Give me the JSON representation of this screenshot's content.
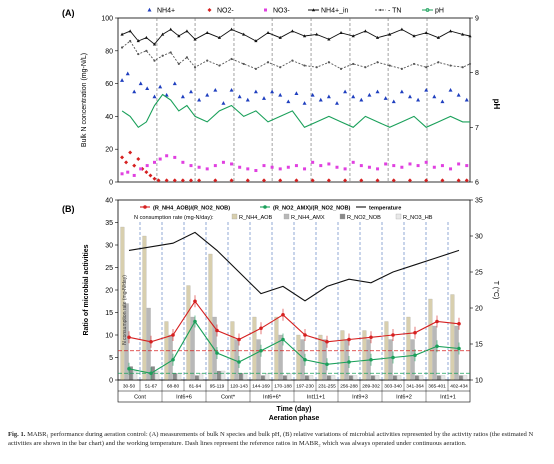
{
  "caption": {
    "label": "Fig. 1.",
    "text": "MABR₁ performance during aeration control: (A) measurements of bulk N species and bulk pH, (B) relative variations of microbial activities represented by the activity ratios (the estimated N activities are shown in the bar chart) and the working temperature. Dash lines represent the reference ratios in MABR₂ which was always operated under continuous aeration."
  },
  "chart_data": [
    {
      "panel": "(A)",
      "type": "scatter",
      "ylabel": "Bulk N concentration (mg-N/L)",
      "y2label": "pH",
      "ylim": [
        0,
        100
      ],
      "y2lim": [
        6,
        9
      ],
      "yticks": [
        0,
        20,
        40,
        60,
        80,
        100
      ],
      "y2ticks": [
        6,
        7,
        8,
        9
      ],
      "xlim": [
        0,
        434
      ],
      "phase_boundaries": [
        48,
        95,
        143,
        190,
        238,
        286,
        333,
        381
      ],
      "series": [
        {
          "name": "NH4+",
          "color": "#1f3fbf",
          "marker": "triangle",
          "axis": "left",
          "x": [
            5,
            12,
            20,
            28,
            36,
            45,
            52,
            60,
            70,
            80,
            90,
            100,
            110,
            120,
            130,
            140,
            150,
            160,
            170,
            180,
            190,
            200,
            210,
            220,
            230,
            240,
            250,
            260,
            270,
            280,
            290,
            300,
            310,
            320,
            330,
            340,
            350,
            360,
            370,
            380,
            390,
            400,
            410,
            420,
            430
          ],
          "values": [
            62,
            66,
            55,
            60,
            57,
            52,
            58,
            53,
            60,
            52,
            55,
            50,
            53,
            56,
            48,
            56,
            52,
            50,
            55,
            51,
            55,
            53,
            49,
            54,
            48,
            53,
            50,
            52,
            48,
            55,
            52,
            50,
            53,
            55,
            51,
            49,
            55,
            52,
            50,
            56,
            52,
            49,
            56,
            53,
            50
          ]
        },
        {
          "name": "NO2-",
          "color": "#d62020",
          "marker": "diamond",
          "axis": "left",
          "x": [
            5,
            10,
            15,
            20,
            25,
            30,
            35,
            40,
            45,
            50,
            60,
            70,
            80,
            90,
            100,
            120,
            140,
            160,
            180,
            200,
            220,
            240,
            260,
            280,
            300,
            320,
            340,
            360,
            380,
            400,
            420,
            430
          ],
          "values": [
            15,
            12,
            18,
            10,
            14,
            8,
            6,
            4,
            2,
            1,
            1,
            1,
            1,
            1,
            1,
            1,
            1,
            1,
            1,
            1,
            1,
            1,
            1,
            1,
            1,
            1,
            1,
            1,
            1,
            1,
            1,
            1
          ]
        },
        {
          "name": "NO3-",
          "color": "#e040e0",
          "marker": "square",
          "axis": "left",
          "x": [
            5,
            12,
            20,
            28,
            36,
            45,
            52,
            60,
            70,
            80,
            90,
            100,
            110,
            120,
            130,
            140,
            150,
            160,
            170,
            180,
            190,
            200,
            210,
            220,
            230,
            240,
            250,
            260,
            270,
            280,
            290,
            300,
            310,
            320,
            330,
            340,
            350,
            360,
            370,
            380,
            390,
            400,
            410,
            420,
            430
          ],
          "values": [
            5,
            6,
            4,
            8,
            10,
            12,
            14,
            16,
            15,
            12,
            10,
            9,
            8,
            10,
            12,
            11,
            9,
            8,
            7,
            10,
            9,
            8,
            9,
            10,
            8,
            12,
            10,
            11,
            9,
            8,
            12,
            10,
            9,
            8,
            11,
            10,
            9,
            11,
            10,
            12,
            9,
            10,
            8,
            11,
            10
          ]
        },
        {
          "name": "NH4+_in",
          "color": "#111111",
          "marker": "triangle-line",
          "axis": "left",
          "x": [
            5,
            15,
            25,
            35,
            45,
            55,
            65,
            75,
            85,
            95,
            110,
            125,
            140,
            155,
            170,
            185,
            200,
            215,
            230,
            245,
            260,
            275,
            290,
            305,
            320,
            335,
            350,
            365,
            380,
            395,
            410,
            425,
            434
          ],
          "values": [
            90,
            92,
            86,
            88,
            84,
            90,
            93,
            89,
            92,
            87,
            91,
            88,
            93,
            90,
            86,
            91,
            88,
            92,
            89,
            90,
            87,
            91,
            89,
            92,
            88,
            90,
            93,
            89,
            91,
            88,
            92,
            90,
            89
          ]
        },
        {
          "name": "TN",
          "color": "#555555",
          "marker": "dot-dash",
          "axis": "left",
          "x": [
            5,
            15,
            25,
            35,
            45,
            55,
            65,
            75,
            85,
            95,
            110,
            125,
            140,
            155,
            170,
            185,
            200,
            215,
            230,
            245,
            260,
            275,
            290,
            305,
            320,
            335,
            350,
            365,
            380,
            395,
            410,
            425,
            434
          ],
          "values": [
            82,
            86,
            78,
            80,
            74,
            77,
            79,
            72,
            76,
            70,
            74,
            71,
            75,
            72,
            69,
            73,
            70,
            74,
            71,
            70,
            73,
            69,
            72,
            70,
            73,
            71,
            69,
            72,
            70,
            73,
            71,
            70,
            72
          ]
        },
        {
          "name": "pH",
          "color": "#1aa05a",
          "marker": "line",
          "axis": "right",
          "x": [
            5,
            15,
            25,
            35,
            45,
            55,
            65,
            75,
            85,
            95,
            110,
            125,
            140,
            155,
            170,
            185,
            200,
            215,
            230,
            245,
            260,
            275,
            290,
            305,
            320,
            335,
            350,
            365,
            380,
            395,
            410,
            425,
            434
          ],
          "values": [
            7.3,
            7.2,
            7.0,
            7.1,
            7.4,
            7.6,
            7.5,
            7.3,
            7.4,
            7.2,
            7.1,
            7.3,
            7.4,
            7.2,
            7.3,
            7.1,
            7.2,
            7.3,
            7.0,
            7.1,
            7.2,
            7.1,
            7.0,
            7.2,
            7.1,
            7.0,
            7.1,
            7.2,
            7.0,
            7.1,
            7.2,
            7.1,
            7.1
          ]
        }
      ],
      "legend_placement": "top"
    },
    {
      "panel": "(B)",
      "type": "line",
      "ylabel": "Ratio of microbial activities",
      "y2label": "T (°C)",
      "xlabel": "Time (day)",
      "xlabel2": "Aeration phase",
      "ylim": [
        0,
        40
      ],
      "y2lim": [
        10,
        35
      ],
      "yticks": [
        0,
        5,
        10,
        15,
        20,
        25,
        30,
        35,
        40
      ],
      "y2ticks": [
        10,
        15,
        20,
        25,
        30,
        35
      ],
      "categories": [
        "30-50",
        "51-67",
        "68-80",
        "81-94",
        "95-119",
        "120-143",
        "144-169",
        "170-188",
        "197-230",
        "231-255",
        "256-288",
        "289-302",
        "303-340",
        "341-364",
        "365-401",
        "402-434"
      ],
      "phases": [
        {
          "label": "Cont",
          "span": [
            0,
            2
          ]
        },
        {
          "label": "Int6+6",
          "span": [
            2,
            4
          ]
        },
        {
          "label": "Cont*",
          "span": [
            4,
            6
          ]
        },
        {
          "label": "Int6+6*",
          "span": [
            6,
            8
          ]
        },
        {
          "label": "Int11+1",
          "span": [
            8,
            10
          ]
        },
        {
          "label": "Int9+3",
          "span": [
            10,
            12
          ]
        },
        {
          "label": "Int6+2",
          "span": [
            12,
            14
          ]
        },
        {
          "label": "Int1+1",
          "span": [
            14,
            16
          ]
        }
      ],
      "series": [
        {
          "name": "(R_NH4_AOB)/(R_NO2_NOB)",
          "color": "#d62020",
          "axis": "left",
          "values": [
            9.5,
            8.5,
            10,
            17.5,
            11,
            9,
            11.5,
            14.5,
            10,
            8.5,
            9,
            9.5,
            10,
            10.5,
            13,
            12.5
          ]
        },
        {
          "name": "(R_NO2_AMX)/(R_NO2_NOB)",
          "color": "#1aa05a",
          "axis": "left",
          "values": [
            2.5,
            1.5,
            4.5,
            13,
            6,
            4,
            6.5,
            9,
            4.5,
            3.5,
            4,
            4.5,
            5,
            5.5,
            7.5,
            7
          ]
        },
        {
          "name": "temperature",
          "color": "#111111",
          "axis": "right",
          "values": [
            28,
            28.5,
            29,
            30.5,
            28,
            25,
            22,
            23,
            21,
            23,
            24,
            23.5,
            25,
            26,
            27,
            28
          ]
        }
      ],
      "reference_lines": [
        {
          "color": "#d62020",
          "value": 6.5
        },
        {
          "color": "#1aa05a",
          "value": 1.5
        }
      ],
      "bar_chart": {
        "title": "N consumption rate (mg-N/day):",
        "ylabel": "N consumption rate (mg-N/day)",
        "series": [
          {
            "name": "R_NH4_AOB",
            "color": "#d8cfae",
            "values": [
              34,
              32,
              13,
              21,
              28,
              13,
              14,
              14,
              10,
              10,
              11,
              11,
              13,
              14,
              18,
              19
            ]
          },
          {
            "name": "R_NH4_AMX",
            "color": "#b8b8b8",
            "values": [
              17,
              16,
              10,
              14,
              14,
              9,
              9,
              10,
              9,
              9,
              9,
              9,
              9,
              9,
              12,
              12
            ]
          },
          {
            "name": "R_NO2_NOB",
            "color": "#8a8a8a",
            "values": [
              3,
              3,
              1.5,
              1,
              2,
              1.5,
              1,
              1,
              1,
              1,
              1,
              1,
              1,
              1,
              1,
              1
            ]
          },
          {
            "name": "R_NO3_HB",
            "color": "#e8e8e8",
            "values": [
              2,
              2,
              1.5,
              1.5,
              2,
              1.5,
              1.5,
              1.5,
              1,
              1,
              1,
              1,
              1,
              1,
              1,
              1
            ]
          }
        ]
      },
      "legend_placement": "top"
    }
  ]
}
